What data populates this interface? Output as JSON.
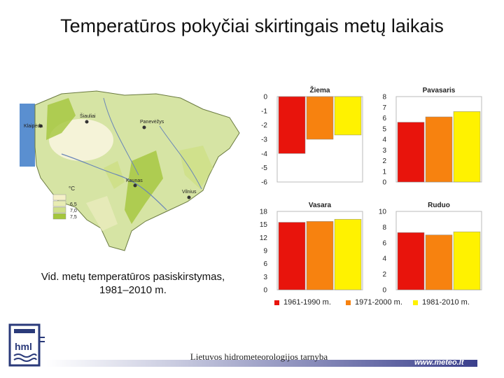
{
  "title": "Temperatūros pokyčiai skirtingais metų laikais",
  "map": {
    "caption": "Vid. metų temperatūros pasiskirstymas, 1981–2010 m.",
    "legend_unit": "°C",
    "legend_values": [
      "6,5",
      "7,0",
      "7,5"
    ],
    "legend_colors": [
      "#f5f0c8",
      "#cfe08a",
      "#a4c63c"
    ],
    "cities": [
      "Klaipėda",
      "Šiauliai",
      "Panevėžys",
      "Kaunas",
      "Vilnius"
    ]
  },
  "chart_data": [
    {
      "type": "bar",
      "title": "Žiema",
      "categories": [
        "1961-1990 m.",
        "1971-2000 m.",
        "1981-2010 m."
      ],
      "values": [
        -4,
        -3,
        -2.7
      ],
      "ylim": [
        -6,
        0
      ],
      "ticks": [
        "0",
        "-1",
        "-2",
        "-3",
        "-4",
        "-5",
        "-6"
      ],
      "baseline": "top"
    },
    {
      "type": "bar",
      "title": "Pavasaris",
      "categories": [
        "1961-1990 m.",
        "1971-2000 m.",
        "1981-2010 m."
      ],
      "values": [
        5.6,
        6.1,
        6.6
      ],
      "ylim": [
        0,
        8
      ],
      "ticks": [
        "8",
        "7",
        "6",
        "5",
        "4",
        "3",
        "2",
        "1",
        "0"
      ],
      "baseline": "bottom"
    },
    {
      "type": "bar",
      "title": "Vasara",
      "categories": [
        "1961-1990 m.",
        "1971-2000 m.",
        "1981-2010 m."
      ],
      "values": [
        15.5,
        15.7,
        16.2
      ],
      "ylim": [
        0,
        18
      ],
      "ticks": [
        "18",
        "15",
        "12",
        "9",
        "6",
        "3",
        "0"
      ],
      "baseline": "bottom"
    },
    {
      "type": "bar",
      "title": "Ruduo",
      "categories": [
        "1961-1990 m.",
        "1971-2000 m.",
        "1981-2010 m."
      ],
      "values": [
        7.3,
        7.0,
        7.4
      ],
      "ylim": [
        0,
        10
      ],
      "ticks": [
        "10",
        "8",
        "6",
        "4",
        "2",
        "0"
      ],
      "baseline": "bottom"
    }
  ],
  "series_colors": [
    "#e8140c",
    "#f7820f",
    "#fff200"
  ],
  "legend": [
    "1961-1990 m.",
    "1971-2000 m.",
    "1981-2010 m."
  ],
  "footer": {
    "org": "Lietuvos hidrometeorologijos tarnyba",
    "url": "www.meteo.lt",
    "logo_text": "hml"
  }
}
